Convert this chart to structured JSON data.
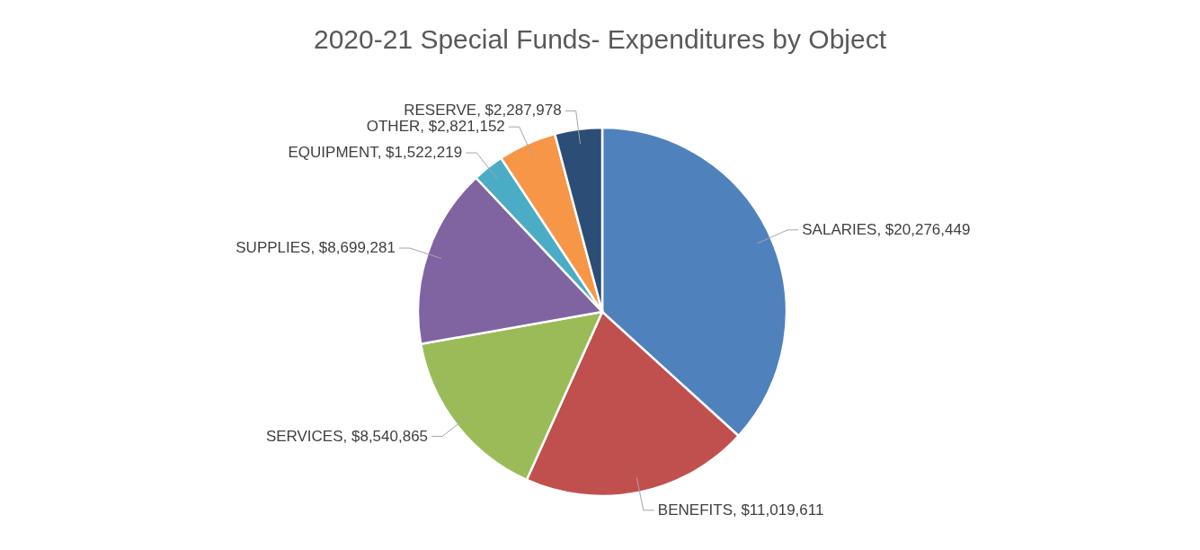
{
  "chart_data": {
    "type": "pie",
    "title": "2020-21 Special Funds- Expenditures by Object",
    "categories": [
      "SALARIES",
      "BENEFITS",
      "SERVICES",
      "SUPPLIES",
      "EQUIPMENT",
      "OTHER",
      "RESERVE"
    ],
    "values": [
      20276449,
      11019611,
      8540865,
      8699281,
      1522219,
      2821152,
      2287978
    ],
    "colors": [
      "#4f81bd",
      "#c0504d",
      "#9bbb59",
      "#8064a2",
      "#4bacc6",
      "#f79646",
      "#2c4d75"
    ],
    "value_labels": [
      "$20,276,449",
      "$11,019,611",
      "$8,540,865",
      "$8,699,281",
      "$1,522,219",
      "$2,821,152",
      "$2,287,978"
    ]
  }
}
